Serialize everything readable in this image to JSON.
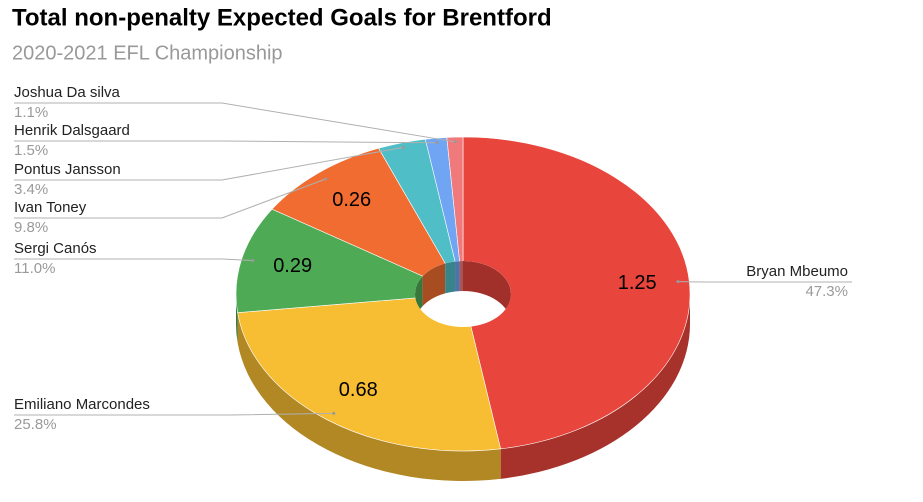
{
  "chart_data": {
    "type": "donut3d",
    "title": "Total non-penalty Expected Goals for Brentford",
    "subtitle": "2020-2021 EFL Championship",
    "categories": [
      "Bryan Mbeumo",
      "Emiliano Marcondes",
      "Sergi Canós",
      "Ivan Toney",
      "Pontus Jansson",
      "Henrik Dalsgaard",
      "Joshua Da silva"
    ],
    "values": [
      1.25,
      0.68,
      0.29,
      0.26,
      0.09,
      0.04,
      0.03
    ],
    "percent_labels": [
      "47.3%",
      "25.8%",
      "11.0%",
      "9.8%",
      "3.4%",
      "1.5%",
      "1.1%"
    ],
    "colors": [
      "#e8453c",
      "#f7bd33",
      "#4eaa55",
      "#f06c30",
      "#4fbec7",
      "#6fa5f3",
      "#f0797b"
    ]
  }
}
